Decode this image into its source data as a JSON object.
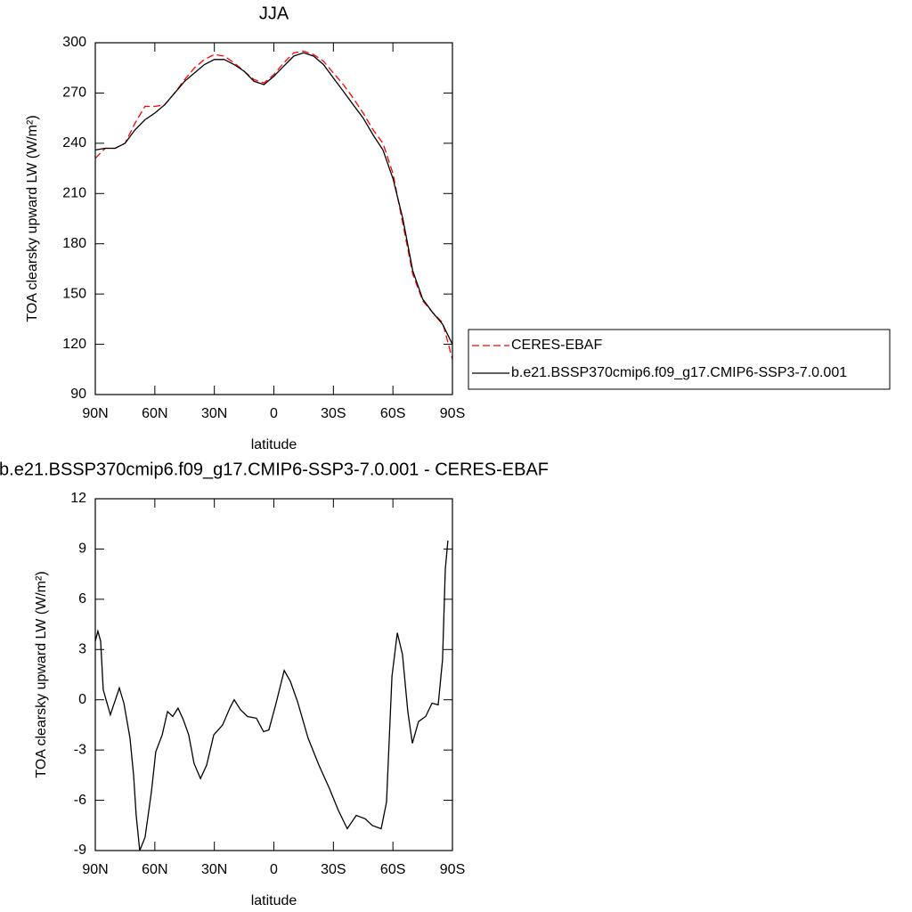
{
  "chart_data": [
    {
      "type": "line",
      "title": "JJA",
      "xlabel": "latitude",
      "ylabel": "TOA clearsky upward LW (W/m²)",
      "x": [
        90,
        85,
        80,
        75,
        70,
        65,
        60,
        55,
        50,
        45,
        40,
        35,
        30,
        25,
        20,
        15,
        10,
        5,
        0,
        -5,
        -10,
        -15,
        -20,
        -25,
        -30,
        -35,
        -40,
        -45,
        -50,
        -55,
        -60,
        -65,
        -70,
        -75,
        -80,
        -85,
        -90
      ],
      "series": [
        {
          "name": "CERES-EBAF",
          "color": "#ff0000",
          "line_style": "dashed",
          "values": [
            231,
            237,
            237,
            240,
            252,
            262,
            262,
            263,
            270,
            278,
            285,
            290,
            293,
            292,
            288,
            283,
            278,
            276,
            281,
            288,
            294,
            295,
            293,
            289,
            282,
            275,
            267,
            258,
            248,
            240,
            222,
            192,
            162,
            146,
            139,
            133,
            111
          ]
        },
        {
          "name": "b.e21.BSSP370cmip6.f09_g17.CMIP6-SSP3-7.0.001",
          "color": "#000000",
          "line_style": "solid",
          "values": [
            236,
            237,
            237,
            240,
            248,
            254,
            258,
            263,
            270,
            277,
            282,
            287,
            290,
            290,
            287,
            283,
            277,
            275,
            280,
            286,
            292,
            294,
            292,
            287,
            279,
            271,
            263,
            255,
            245,
            236,
            219,
            195,
            164,
            147,
            139,
            132,
            120
          ]
        }
      ],
      "xlim": [
        90,
        -90
      ],
      "xticks": [
        {
          "value": 90,
          "label": "90N"
        },
        {
          "value": 60,
          "label": "60N"
        },
        {
          "value": 30,
          "label": "30N"
        },
        0,
        {
          "value": -30,
          "label": "30S"
        },
        {
          "value": -60,
          "label": "60S"
        },
        {
          "value": -90,
          "label": "90S"
        }
      ],
      "ylim": [
        90,
        300
      ],
      "yticks": [
        90,
        120,
        150,
        180,
        210,
        240,
        270,
        300
      ],
      "legend": "outside-right"
    },
    {
      "type": "line",
      "title": "b.e21.BSSP370cmip6.f09_g17.CMIP6-SSP3-7.0.001 - CERES-EBAF",
      "xlabel": "latitude",
      "ylabel": "TOA clearsky upward LW (W/m²)",
      "x": [
        90,
        88.7,
        87.3,
        86,
        82.4,
        77.9,
        75.6,
        72.5,
        70.7,
        69.4,
        67.6,
        64.9,
        61.7,
        59.5,
        56.3,
        53.6,
        51,
        48.3,
        45.6,
        42.9,
        40.2,
        37,
        33.9,
        30.3,
        25.8,
        22.2,
        20,
        16.8,
        13.3,
        8.8,
        5.2,
        2.5,
        -1.1,
        -5.2,
        -8.3,
        -11.9,
        -17.3,
        -22.7,
        -28,
        -32.5,
        -37,
        -41.5,
        -46,
        -49.6,
        -54.1,
        -56.8,
        -59.5,
        -62.2,
        -64.8,
        -67.5,
        -69.8,
        -72.9,
        -76.5,
        -79.7,
        -82.8,
        -85,
        -86.4,
        -87.7
      ],
      "series": [
        {
          "color": "#000000",
          "line_style": "solid",
          "values": [
            3.5,
            4.1,
            3.5,
            0.6,
            -0.9,
            0.7,
            -0.2,
            -2.3,
            -4.5,
            -6.9,
            -9.0,
            -8.2,
            -5.5,
            -3.1,
            -2.1,
            -0.7,
            -1.0,
            -0.5,
            -1.2,
            -2.1,
            -3.8,
            -4.7,
            -3.9,
            -2.1,
            -1.5,
            -0.5,
            0,
            -0.6,
            -1.0,
            -1.1,
            -1.9,
            -1.8,
            -0.2,
            1.75,
            1.1,
            -0.1,
            -2.3,
            -3.9,
            -5.3,
            -6.6,
            -7.7,
            -6.9,
            -7.1,
            -7.5,
            -7.7,
            -6.1,
            1.4,
            4.0,
            2.7,
            -0.7,
            -2.6,
            -1.3,
            -1.0,
            -0.2,
            -0.3,
            2.4,
            7.8,
            9.5
          ]
        }
      ],
      "xlim": [
        90,
        -90
      ],
      "xticks": [
        {
          "value": 90,
          "label": "90N"
        },
        {
          "value": 60,
          "label": "60N"
        },
        {
          "value": 30,
          "label": "30N"
        },
        0,
        {
          "value": -30,
          "label": "30S"
        },
        {
          "value": -60,
          "label": "60S"
        },
        {
          "value": -90,
          "label": "90S"
        }
      ],
      "ylim": [
        -9,
        12
      ],
      "yticks": [
        -9,
        -6,
        -3,
        0,
        3,
        6,
        9,
        12
      ]
    }
  ]
}
